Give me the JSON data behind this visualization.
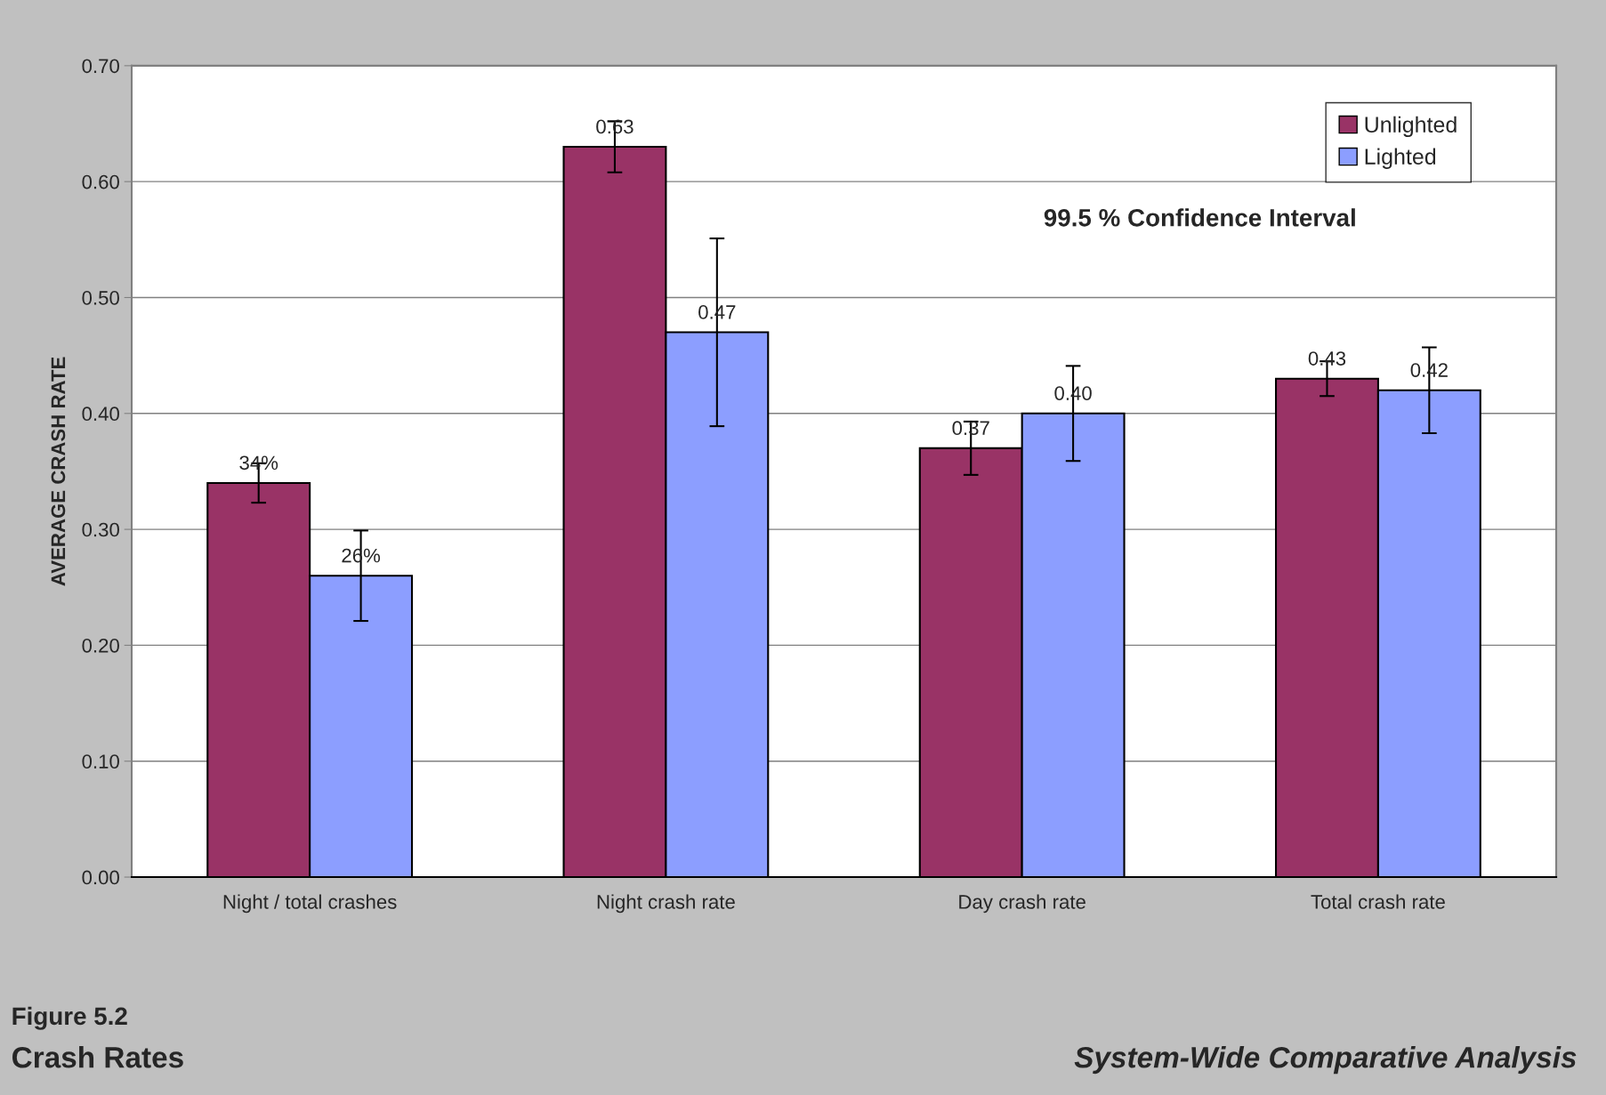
{
  "chart_data": {
    "type": "bar",
    "title": "Figure 5.2",
    "subtitle": "Crash Rates",
    "ylabel": "AVERAGE CRASH RATE",
    "categories": [
      "Night / total crashes",
      "Night crash rate",
      "Day crash rate",
      "Total crash rate"
    ],
    "series": [
      {
        "name": "Unlighted",
        "color": "#993366",
        "values": [
          0.34,
          0.63,
          0.37,
          0.43
        ],
        "errors": [
          0.017,
          0.022,
          0.023,
          0.015
        ],
        "value_labels": [
          "34%",
          "0.63",
          "0.37",
          "0.43"
        ]
      },
      {
        "name": "Lighted",
        "color": "#8c9eff",
        "values": [
          0.26,
          0.47,
          0.4,
          0.42
        ],
        "errors": [
          0.039,
          0.081,
          0.041,
          0.037
        ],
        "value_labels": [
          "26%",
          "0.47",
          "0.40",
          "0.42"
        ]
      }
    ],
    "ylim": [
      0,
      0.7
    ],
    "yticks": [
      {
        "value": 0,
        "label": "0.00"
      },
      {
        "value": 0.1,
        "label": "0.10"
      },
      {
        "value": 0.2,
        "label": "0.20"
      },
      {
        "value": 0.3,
        "label": "0.30"
      },
      {
        "value": 0.4,
        "label": "0.40"
      },
      {
        "value": 0.5,
        "label": "0.50"
      },
      {
        "value": 0.6,
        "label": "0.60"
      },
      {
        "value": 0.7,
        "label": "0.70"
      }
    ],
    "grid": "y",
    "legend": "top right",
    "annotations": [
      "99.5 % Confidence Interval",
      "System-Wide Comparative Analysis"
    ]
  }
}
